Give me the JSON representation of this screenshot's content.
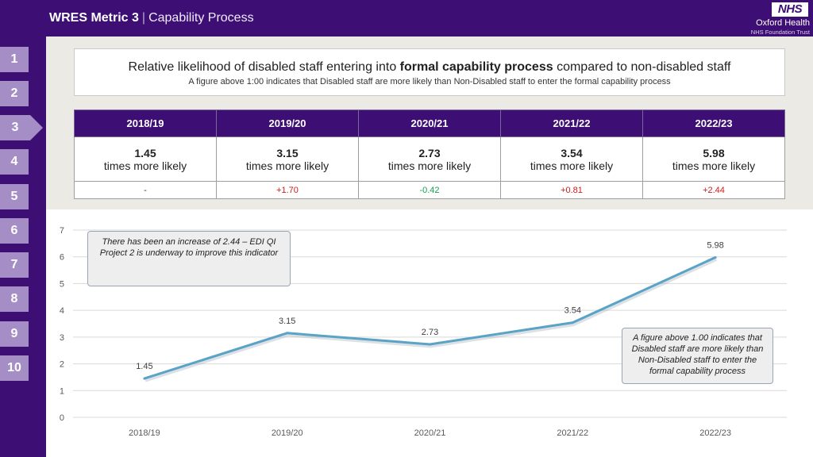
{
  "header": {
    "metric": "WRES Metric 3",
    "separator": "|",
    "subtitle": "Capability Process",
    "logo_text": "NHS",
    "org_name": "Oxford Health",
    "org_sub": "NHS Foundation Trust"
  },
  "sidebar": {
    "items": [
      "1",
      "2",
      "3",
      "4",
      "5",
      "6",
      "7",
      "8",
      "9",
      "10"
    ],
    "active_index": 2
  },
  "headline": {
    "prefix": "Relative likelihood of disabled staff entering into ",
    "bold": "formal capability process",
    "suffix": " compared to non-disabled staff",
    "subline": "A figure above 1:00 indicates that Disabled staff are more likely than Non-Disabled staff to enter the formal capability process"
  },
  "table": {
    "years": [
      "2018/19",
      "2019/20",
      "2020/21",
      "2021/22",
      "2022/23"
    ],
    "values": [
      "1.45",
      "3.15",
      "2.73",
      "3.54",
      "5.98"
    ],
    "unit_text": "times more likely",
    "changes": [
      {
        "text": "-",
        "kind": "neutral"
      },
      {
        "text": "+1.70",
        "kind": "pos"
      },
      {
        "text": "-0.42",
        "kind": "neg"
      },
      {
        "text": "+0.81",
        "kind": "pos"
      },
      {
        "text": "+2.44",
        "kind": "pos"
      }
    ]
  },
  "annotations": {
    "left": "There has been an increase of 2.44 – EDI QI Project 2 is underway to improve this indicator",
    "right": "A figure above 1.00 indicates that Disabled staff are more likely than Non-Disabled staff to enter the formal capability process"
  },
  "colors": {
    "brand": "#3d0f74",
    "nav": "#a48ec5",
    "line": "#5aa3c7",
    "increase": "#d11a1a",
    "decrease": "#16a34a"
  },
  "chart_data": {
    "type": "line",
    "categories": [
      "2018/19",
      "2019/20",
      "2020/21",
      "2021/22",
      "2022/23"
    ],
    "series": [
      {
        "name": "Relative likelihood",
        "values": [
          1.45,
          3.15,
          2.73,
          3.54,
          5.98
        ]
      }
    ],
    "data_labels": [
      "1.45",
      "3.15",
      "2.73",
      "3.54",
      "5.98"
    ],
    "ylim": [
      0,
      7
    ],
    "yticks": [
      0,
      1,
      2,
      3,
      4,
      5,
      6,
      7
    ],
    "grid": true,
    "title": "",
    "xlabel": "",
    "ylabel": ""
  }
}
